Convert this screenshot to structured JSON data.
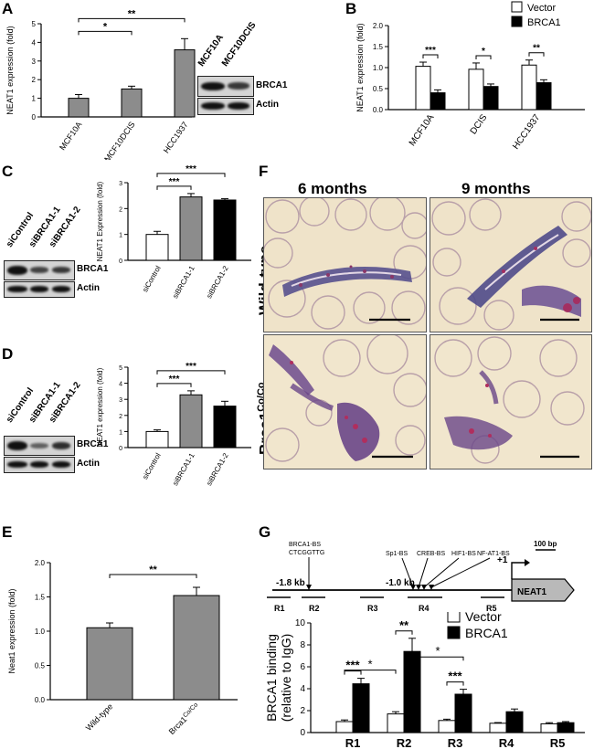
{
  "panels": {
    "A": "A",
    "B": "B",
    "C": "C",
    "D": "D",
    "E": "E",
    "F": "F",
    "G": "G"
  },
  "blots": {
    "A": {
      "lanes": [
        "MCF10A",
        "MCF10DCIS"
      ],
      "labels": [
        "BRCA1",
        "Actin"
      ]
    },
    "C": {
      "lanes": [
        "siControl",
        "siBRCA1-1",
        "siBRCA1-2"
      ],
      "labels": [
        "BRCA1",
        "Actin"
      ]
    },
    "D": {
      "lanes": [
        "siControl",
        "siBRCA1-1",
        "siBRCA1-2"
      ],
      "labels": [
        "BRCA1",
        "Actin"
      ]
    }
  },
  "histology": {
    "col_titles": [
      "6 months",
      "9 months"
    ],
    "row_labels": [
      "Wild-type",
      "Brca1"
    ],
    "row_label_sup": "Co/Co"
  },
  "promoter": {
    "left_label": "-1.8 kb",
    "mid_label": "-1.0 kb",
    "tss_label": "+1",
    "scale_label": "100 bp",
    "gene_label": "NEAT1",
    "sites": [
      "BRCA1-BS",
      "CTCGGTTG",
      "Sp1-BS",
      "CREB-BS",
      "HIF1-BS",
      "NF-AT1-BS"
    ],
    "regions": [
      "R1",
      "R2",
      "R3",
      "R4",
      "R5"
    ]
  },
  "chart_data": [
    {
      "panel": "A",
      "type": "bar",
      "categories": [
        "MCF10A",
        "MCF10DCIS",
        "HCC1937"
      ],
      "values": [
        1.0,
        1.5,
        3.6
      ],
      "errors": [
        0.2,
        0.15,
        0.6
      ],
      "ylabel": "NEAT1 expression (fold)",
      "ylim": [
        0,
        5
      ],
      "yticks": [
        0,
        1,
        2,
        3,
        4,
        5
      ],
      "color": "#8c8c8c",
      "significance": [
        {
          "from": 0,
          "to": 1,
          "label": "*"
        },
        {
          "from": 0,
          "to": 2,
          "label": "**"
        }
      ]
    },
    {
      "panel": "B",
      "type": "bar",
      "categories": [
        "MCF10A",
        "DCIS",
        "HCC1937"
      ],
      "series": [
        {
          "name": "Vector",
          "values": [
            1.03,
            0.96,
            1.06
          ],
          "errors": [
            0.1,
            0.15,
            0.12
          ],
          "color": "#ffffff"
        },
        {
          "name": "BRCA1",
          "values": [
            0.4,
            0.55,
            0.64
          ],
          "errors": [
            0.07,
            0.06,
            0.07
          ],
          "color": "#000000"
        }
      ],
      "ylabel": "NEAT1 expression (fold)",
      "ylim": [
        0,
        2.0
      ],
      "yticks": [
        0.0,
        0.5,
        1.0,
        1.5,
        2.0
      ],
      "significance": [
        {
          "group": 0,
          "label": "***"
        },
        {
          "group": 1,
          "label": "*"
        },
        {
          "group": 2,
          "label": "**"
        }
      ]
    },
    {
      "panel": "C",
      "type": "bar",
      "categories": [
        "siControl",
        "siBRCA1-1",
        "siBRCA1-2"
      ],
      "values": [
        1.0,
        2.45,
        2.33
      ],
      "errors": [
        0.12,
        0.13,
        0.05
      ],
      "colors": [
        "#ffffff",
        "#8c8c8c",
        "#000000"
      ],
      "ylabel": "NEAT1 Expression (fold)",
      "ylim": [
        0,
        3
      ],
      "yticks": [
        0,
        1,
        2,
        3
      ],
      "significance": [
        {
          "from": 0,
          "to": 1,
          "label": "***"
        },
        {
          "from": 0,
          "to": 2,
          "label": "***"
        }
      ]
    },
    {
      "panel": "D",
      "type": "bar",
      "categories": [
        "siControl",
        "siBRCA1-1",
        "siBRCA1-2"
      ],
      "values": [
        1.0,
        3.28,
        2.58
      ],
      "errors": [
        0.1,
        0.25,
        0.3
      ],
      "colors": [
        "#ffffff",
        "#8c8c8c",
        "#000000"
      ],
      "ylabel": "NEAT1 expression (fold)",
      "ylim": [
        0,
        5
      ],
      "yticks": [
        0,
        1,
        2,
        3,
        4,
        5
      ],
      "significance": [
        {
          "from": 0,
          "to": 1,
          "label": "***"
        },
        {
          "from": 0,
          "to": 2,
          "label": "***"
        }
      ]
    },
    {
      "panel": "E",
      "type": "bar",
      "categories": [
        "Wild-type",
        "Brca1"
      ],
      "category_sup": [
        "",
        "Co/Co"
      ],
      "values": [
        1.05,
        1.52
      ],
      "errors": [
        0.07,
        0.12
      ],
      "color": "#8c8c8c",
      "ylabel": "Neat1 expression (fold)",
      "ylim": [
        0,
        2.0
      ],
      "yticks": [
        0.0,
        0.5,
        1.0,
        1.5,
        2.0
      ],
      "significance": [
        {
          "from": 0,
          "to": 1,
          "label": "**"
        }
      ]
    },
    {
      "panel": "G",
      "type": "bar",
      "categories": [
        "R1",
        "R2",
        "R3",
        "R4",
        "R5"
      ],
      "series": [
        {
          "name": "Vector",
          "values": [
            1.0,
            1.7,
            1.1,
            0.85,
            0.8
          ],
          "errors": [
            0.15,
            0.2,
            0.12,
            0.06,
            0.1
          ],
          "color": "#ffffff"
        },
        {
          "name": "BRCA1",
          "values": [
            4.45,
            7.4,
            3.5,
            1.9,
            0.9
          ],
          "errors": [
            0.5,
            1.2,
            0.45,
            0.25,
            0.1
          ],
          "color": "#000000"
        }
      ],
      "ylabel": "BRCA1 binding",
      "ylabel2": "(relative to IgG)",
      "ylim": [
        0,
        10
      ],
      "yticks": [
        0,
        2,
        4,
        6,
        8,
        10
      ],
      "significance": [
        {
          "group": 0,
          "label": "***"
        },
        {
          "group": 1,
          "label": "**"
        },
        {
          "group": 2,
          "label": "***"
        }
      ],
      "cross_significance": [
        "*",
        "*"
      ]
    }
  ]
}
